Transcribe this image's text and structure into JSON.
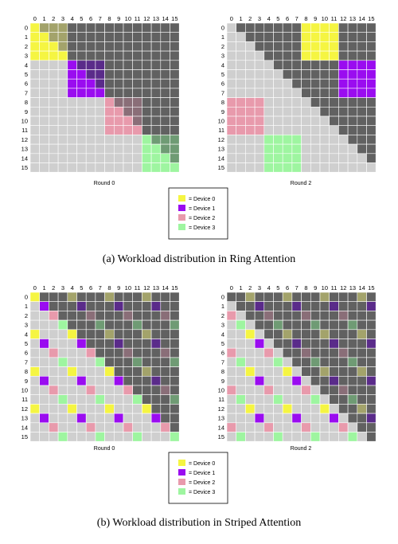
{
  "axis_labels": [
    "0",
    "1",
    "2",
    "3",
    "4",
    "5",
    "6",
    "7",
    "8",
    "9",
    "10",
    "11",
    "12",
    "13",
    "14",
    "15"
  ],
  "colors": {
    "upper": "#616161",
    "lower": "#cfcfcf",
    "device": [
      "#f5f542",
      "#9a0cf0",
      "#e89aac",
      "#9ef5a0"
    ],
    "device_dim": [
      "#a3a36b",
      "#5a2b8a",
      "#8a6e78",
      "#6f9b74"
    ]
  },
  "legend": {
    "items": [
      {
        "swatch_color": "#f5f542",
        "text": "=   Device 0"
      },
      {
        "swatch_color": "#9a0cf0",
        "text": "=   Device 1"
      },
      {
        "swatch_color": "#e89aac",
        "text": "=   Device 2"
      },
      {
        "swatch_color": "#9ef5a0",
        "text": "=   Device 3"
      }
    ]
  },
  "panels": [
    {
      "caption": "(a)  Workload distribution in Ring Attention",
      "matrices": [
        {
          "round_label": "Round 0",
          "scheme": "ring",
          "round": 0
        },
        {
          "round_label": "Round 2",
          "scheme": "ring",
          "round": 2
        }
      ]
    },
    {
      "caption": "(b)  Workload distribution in Striped Attention",
      "matrices": [
        {
          "round_label": "Round 0",
          "scheme": "striped",
          "round": 0
        },
        {
          "round_label": "Round 2",
          "scheme": "striped",
          "round": 2
        }
      ]
    }
  ]
}
